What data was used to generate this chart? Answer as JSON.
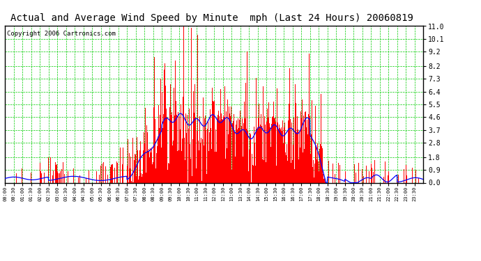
{
  "title": "Actual and Average Wind Speed by Minute  mph (Last 24 Hours) 20060819",
  "copyright": "Copyright 2006 Cartronics.com",
  "yticks": [
    0.0,
    0.9,
    1.8,
    2.8,
    3.7,
    4.6,
    5.5,
    6.4,
    7.3,
    8.2,
    9.2,
    10.1,
    11.0
  ],
  "ylim": [
    0.0,
    11.0
  ],
  "bg_color": "#ffffff",
  "plot_bg_color": "#ffffff",
  "bar_color": "#ff0000",
  "line_color": "#0000ff",
  "grid_color": "#00cc00",
  "title_color": "#000000",
  "border_color": "#000000",
  "copyright_color": "#000000",
  "title_fontsize": 10,
  "copyright_fontsize": 6.5,
  "xtick_fontsize": 5,
  "ytick_fontsize": 7
}
